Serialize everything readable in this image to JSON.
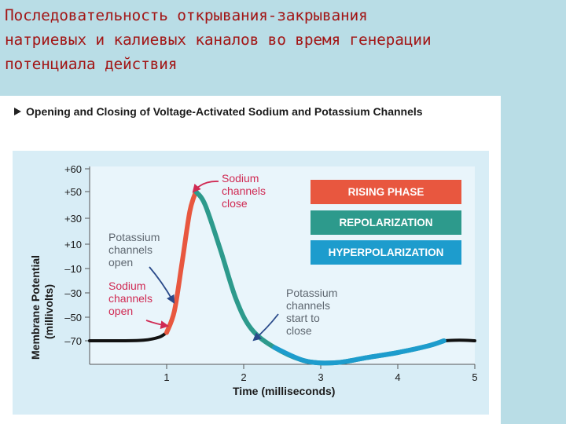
{
  "slide": {
    "title_lines": [
      "Последовательность открывания-закрывания",
      "натриевых и калиевых каналов во время генерации",
      "потенциала действия"
    ]
  },
  "figure": {
    "heading": "Opening and Closing of Voltage-Activated Sodium and Potassium Channels",
    "heading_marker": "triangle-right-icon"
  },
  "colors": {
    "title": "#a21616",
    "plot_bg": "#e9f5fb",
    "panel_bg": "#d8edf6",
    "rising": "#e8573f",
    "repolarization": "#2d9a8c",
    "hyperpolarization": "#1d9ccd",
    "baseline": "#111111",
    "annotation": "#d02a53",
    "annotation_k": "#5e6770",
    "arrow_dark": "#2a4a8a"
  },
  "chart_data": {
    "type": "line",
    "xlabel": "Time (milliseconds)",
    "ylabel": "Membrane Potential",
    "ylabel_units": "(millivolts)",
    "xlim": [
      0,
      5
    ],
    "ylim": [
      -77,
      60
    ],
    "x_ticks": [
      "1",
      "2",
      "3",
      "4",
      "5"
    ],
    "y_ticks": [
      "+60",
      "+50",
      "+30",
      "+10",
      "–10",
      "–30",
      "–50",
      "–70"
    ],
    "y_tick_values": [
      60,
      50,
      30,
      10,
      -10,
      -30,
      -50,
      -70
    ],
    "legend": [
      "RISING PHASE",
      "REPOLARIZATION",
      "HYPERPOLARIZATION"
    ],
    "series": [
      {
        "x": [
          0,
          0.4,
          0.7,
          0.9,
          1.0
        ],
        "y": [
          -70,
          -70,
          -69.5,
          -67,
          -63
        ]
      },
      {
        "x": [
          1.0,
          1.1,
          1.2,
          1.3,
          1.38
        ],
        "y": [
          -63,
          -45,
          -5,
          35,
          50
        ]
      },
      {
        "x": [
          1.38,
          1.5,
          1.7,
          1.9,
          2.1,
          2.4,
          2.8,
          3.2,
          3.6,
          4.0,
          4.4,
          4.6
        ],
        "y": [
          50,
          40,
          5,
          -35,
          -60,
          -72,
          -76,
          -76.5,
          -75,
          -73.5,
          -71.5,
          -70
        ]
      },
      {
        "x": [
          4.6,
          4.8,
          5.0
        ],
        "y": [
          -70,
          -69.5,
          -70
        ]
      }
    ],
    "annotations": [
      {
        "text": [
          "Sodium",
          "channels",
          "close"
        ],
        "x": 1.38,
        "y": 50
      },
      {
        "text": [
          "Potassium",
          "channels",
          "open"
        ],
        "x": 1.1,
        "y": -45
      },
      {
        "text": [
          "Sodium",
          "channels",
          "open"
        ],
        "x": 1.0,
        "y": -63
      },
      {
        "text": [
          "Potassium",
          "channels",
          "start to",
          "close"
        ],
        "x": 2.1,
        "y": -60
      }
    ]
  }
}
